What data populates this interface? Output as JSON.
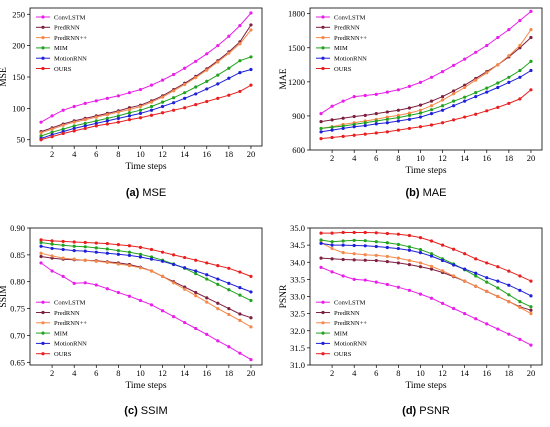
{
  "chart_data": [
    {
      "type": "line",
      "caption_label": "(a)",
      "caption_title": "MSE",
      "xlabel": "Time steps",
      "ylabel": "MSE",
      "x": [
        1,
        2,
        3,
        4,
        5,
        6,
        7,
        8,
        9,
        10,
        11,
        12,
        13,
        14,
        15,
        16,
        17,
        18,
        19,
        20
      ],
      "xticks": [
        2,
        4,
        6,
        8,
        10,
        12,
        14,
        16,
        18,
        20
      ],
      "xlim": [
        0,
        21
      ],
      "ylim": [
        40,
        260
      ],
      "yticks": [
        50,
        100,
        150,
        200,
        250
      ],
      "legend_position": "top-left",
      "series": [
        {
          "name": "ConvLSTM",
          "color": "#e81fe8",
          "values": [
            78,
            88,
            97,
            103,
            108,
            112,
            116,
            120,
            125,
            130,
            137,
            145,
            154,
            164,
            175,
            187,
            200,
            215,
            232,
            252
          ]
        },
        {
          "name": "PredRNN",
          "color": "#7e1f3f",
          "values": [
            63,
            69,
            75,
            80,
            84,
            88,
            92,
            96,
            101,
            105,
            112,
            120,
            130,
            140,
            151,
            163,
            176,
            190,
            206,
            233
          ]
        },
        {
          "name": "PredRNN++",
          "color": "#f5894a",
          "values": [
            61,
            67,
            73,
            78,
            82,
            86,
            90,
            94,
            98,
            103,
            110,
            118,
            128,
            138,
            149,
            161,
            174,
            188,
            203,
            225
          ]
        },
        {
          "name": "MIM",
          "color": "#21a31f",
          "values": [
            56,
            62,
            67,
            72,
            76,
            80,
            84,
            88,
            93,
            97,
            103,
            110,
            117,
            125,
            134,
            143,
            153,
            164,
            176,
            182
          ]
        },
        {
          "name": "MotionRNN",
          "color": "#1e20d8",
          "values": [
            52,
            58,
            63,
            68,
            72,
            76,
            80,
            84,
            88,
            92,
            97,
            103,
            109,
            116,
            123,
            131,
            139,
            148,
            157,
            162
          ]
        },
        {
          "name": "OURS",
          "color": "#e81f1f",
          "values": [
            50,
            55,
            60,
            64,
            68,
            72,
            75,
            78,
            82,
            85,
            89,
            93,
            97,
            101,
            106,
            111,
            116,
            121,
            127,
            137
          ]
        }
      ]
    },
    {
      "type": "line",
      "caption_label": "(b)",
      "caption_title": "MAE",
      "xlabel": "Time steps",
      "ylabel": "MAE",
      "x": [
        1,
        2,
        3,
        4,
        5,
        6,
        7,
        8,
        9,
        10,
        11,
        12,
        13,
        14,
        15,
        16,
        17,
        18,
        19,
        20
      ],
      "xticks": [
        2,
        4,
        6,
        8,
        10,
        12,
        14,
        16,
        18,
        20
      ],
      "xlim": [
        0,
        21
      ],
      "ylim": [
        600,
        1850
      ],
      "yticks": [
        600,
        900,
        1200,
        1500,
        1800
      ],
      "legend_position": "top-left",
      "series": [
        {
          "name": "ConvLSTM",
          "color": "#e81fe8",
          "values": [
            920,
            985,
            1030,
            1070,
            1080,
            1090,
            1110,
            1130,
            1160,
            1195,
            1240,
            1290,
            1345,
            1400,
            1460,
            1520,
            1590,
            1660,
            1740,
            1820
          ]
        },
        {
          "name": "PredRNN",
          "color": "#7e1f3f",
          "values": [
            850,
            865,
            880,
            895,
            905,
            920,
            935,
            950,
            970,
            995,
            1030,
            1070,
            1120,
            1170,
            1230,
            1290,
            1350,
            1420,
            1500,
            1590
          ]
        },
        {
          "name": "PredRNN++",
          "color": "#f5894a",
          "values": [
            790,
            805,
            825,
            840,
            855,
            870,
            890,
            905,
            925,
            950,
            990,
            1040,
            1095,
            1150,
            1215,
            1280,
            1350,
            1430,
            1520,
            1660
          ]
        },
        {
          "name": "MIM",
          "color": "#21a31f",
          "values": [
            790,
            800,
            810,
            825,
            840,
            855,
            870,
            885,
            905,
            925,
            955,
            990,
            1030,
            1065,
            1105,
            1145,
            1190,
            1240,
            1300,
            1380
          ]
        },
        {
          "name": "MotionRNN",
          "color": "#1e20d8",
          "values": [
            760,
            775,
            790,
            805,
            815,
            830,
            840,
            855,
            870,
            890,
            920,
            950,
            990,
            1030,
            1070,
            1110,
            1150,
            1195,
            1240,
            1300
          ]
        },
        {
          "name": "OURS",
          "color": "#e81f1f",
          "values": [
            700,
            710,
            720,
            730,
            740,
            750,
            760,
            775,
            790,
            805,
            820,
            840,
            865,
            890,
            915,
            945,
            975,
            1010,
            1050,
            1130
          ]
        }
      ]
    },
    {
      "type": "line",
      "caption_label": "(c)",
      "caption_title": "SSIM",
      "xlabel": "Time steps",
      "ylabel": "SSIM",
      "x": [
        1,
        2,
        3,
        4,
        5,
        6,
        7,
        8,
        9,
        10,
        11,
        12,
        13,
        14,
        15,
        16,
        17,
        18,
        19,
        20
      ],
      "xticks": [
        2,
        4,
        6,
        8,
        10,
        12,
        14,
        16,
        18,
        20
      ],
      "xlim": [
        0,
        21
      ],
      "ylim": [
        0.645,
        0.9
      ],
      "yticks": [
        0.65,
        0.7,
        0.75,
        0.8,
        0.85,
        0.9
      ],
      "ytick_labels": [
        "0.65",
        "0.70",
        "0.75",
        "0.80",
        "0.85",
        "0.90"
      ],
      "legend_position": "bottom-left",
      "series": [
        {
          "name": "ConvLSTM",
          "color": "#e81fe8",
          "values": [
            0.835,
            0.82,
            0.81,
            0.797,
            0.798,
            0.794,
            0.787,
            0.78,
            0.773,
            0.765,
            0.757,
            0.746,
            0.735,
            0.724,
            0.713,
            0.702,
            0.69,
            0.679,
            0.667,
            0.655
          ]
        },
        {
          "name": "PredRNN",
          "color": "#7e1f3f",
          "values": [
            0.847,
            0.844,
            0.842,
            0.841,
            0.84,
            0.839,
            0.837,
            0.835,
            0.832,
            0.827,
            0.82,
            0.81,
            0.8,
            0.79,
            0.78,
            0.77,
            0.76,
            0.75,
            0.74,
            0.733
          ]
        },
        {
          "name": "PredRNN++",
          "color": "#f5894a",
          "values": [
            0.853,
            0.848,
            0.844,
            0.842,
            0.84,
            0.838,
            0.836,
            0.833,
            0.83,
            0.826,
            0.82,
            0.81,
            0.798,
            0.786,
            0.774,
            0.762,
            0.75,
            0.739,
            0.728,
            0.716
          ]
        },
        {
          "name": "MIM",
          "color": "#21a31f",
          "values": [
            0.873,
            0.87,
            0.868,
            0.866,
            0.865,
            0.863,
            0.861,
            0.858,
            0.855,
            0.851,
            0.846,
            0.84,
            0.833,
            0.825,
            0.815,
            0.805,
            0.795,
            0.785,
            0.775,
            0.765
          ]
        },
        {
          "name": "MotionRNN",
          "color": "#1e20d8",
          "values": [
            0.866,
            0.862,
            0.86,
            0.858,
            0.857,
            0.855,
            0.853,
            0.851,
            0.849,
            0.846,
            0.842,
            0.838,
            0.832,
            0.826,
            0.82,
            0.813,
            0.805,
            0.797,
            0.789,
            0.781
          ]
        },
        {
          "name": "OURS",
          "color": "#e81f1f",
          "values": [
            0.878,
            0.876,
            0.875,
            0.874,
            0.873,
            0.872,
            0.871,
            0.869,
            0.867,
            0.864,
            0.86,
            0.855,
            0.85,
            0.845,
            0.84,
            0.835,
            0.83,
            0.825,
            0.818,
            0.81
          ]
        }
      ]
    },
    {
      "type": "line",
      "caption_label": "(d)",
      "caption_title": "PSNR",
      "xlabel": "Time steps",
      "ylabel": "PSNR",
      "x": [
        1,
        2,
        3,
        4,
        5,
        6,
        7,
        8,
        9,
        10,
        11,
        12,
        13,
        14,
        15,
        16,
        17,
        18,
        19,
        20
      ],
      "xticks": [
        2,
        4,
        6,
        8,
        10,
        12,
        14,
        16,
        18,
        20
      ],
      "xlim": [
        0,
        21
      ],
      "ylim": [
        31.0,
        35.0
      ],
      "yticks": [
        31.0,
        31.5,
        32.0,
        32.5,
        33.0,
        33.5,
        34.0,
        34.5,
        35.0
      ],
      "ytick_labels": [
        "31.0",
        "31.5",
        "32.0",
        "32.5",
        "33.0",
        "33.5",
        "34.0",
        "34.5",
        "35.0"
      ],
      "legend_position": "bottom-left",
      "series": [
        {
          "name": "ConvLSTM",
          "color": "#e81fe8",
          "values": [
            33.85,
            33.72,
            33.6,
            33.5,
            33.48,
            33.42,
            33.35,
            33.27,
            33.18,
            33.07,
            32.95,
            32.8,
            32.65,
            32.5,
            32.35,
            32.2,
            32.05,
            31.9,
            31.75,
            31.58
          ]
        },
        {
          "name": "PredRNN",
          "color": "#7e1f3f",
          "values": [
            34.12,
            34.1,
            34.08,
            34.07,
            34.06,
            34.05,
            34.02,
            33.98,
            33.93,
            33.87,
            33.8,
            33.7,
            33.58,
            33.45,
            33.3,
            33.15,
            33.0,
            32.85,
            32.7,
            32.6
          ]
        },
        {
          "name": "PredRNN++",
          "color": "#f5894a",
          "values": [
            34.58,
            34.4,
            34.28,
            34.25,
            34.22,
            34.2,
            34.17,
            34.12,
            34.05,
            33.98,
            33.88,
            33.75,
            33.6,
            33.45,
            33.3,
            33.15,
            33.0,
            32.85,
            32.68,
            32.5
          ]
        },
        {
          "name": "MIM",
          "color": "#21a31f",
          "values": [
            34.65,
            34.6,
            34.62,
            34.64,
            34.63,
            34.6,
            34.57,
            34.52,
            34.45,
            34.37,
            34.25,
            34.1,
            33.95,
            33.78,
            33.6,
            33.42,
            33.25,
            33.05,
            32.85,
            32.7
          ]
        },
        {
          "name": "MotionRNN",
          "color": "#1e20d8",
          "values": [
            34.55,
            34.5,
            34.5,
            34.49,
            34.48,
            34.46,
            34.43,
            34.4,
            34.35,
            34.28,
            34.18,
            34.05,
            33.92,
            33.8,
            33.68,
            33.55,
            33.45,
            33.33,
            33.18,
            33.02
          ]
        },
        {
          "name": "OURS",
          "color": "#e81f1f",
          "values": [
            34.85,
            34.85,
            34.87,
            34.87,
            34.87,
            34.86,
            34.84,
            34.82,
            34.78,
            34.72,
            34.62,
            34.5,
            34.38,
            34.25,
            34.1,
            33.98,
            33.87,
            33.74,
            33.6,
            33.45
          ]
        }
      ]
    }
  ]
}
